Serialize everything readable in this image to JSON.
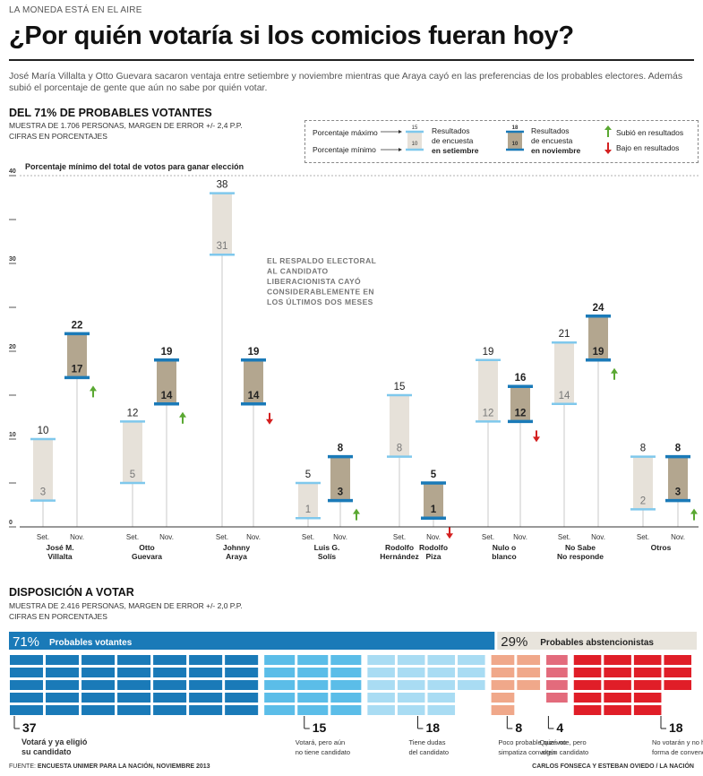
{
  "header": {
    "kicker": "LA MONEDA ESTÁ EN EL AIRE",
    "title": "¿Por quién votaría si los comicios fueran hoy?",
    "intro": "José María Villalta y Otto Guevara sacaron ventaja entre setiembre y noviembre mientras que Araya cayó en las preferencias de los probables electores. Además subió el porcentaje de gente que aún no sabe por quién votar."
  },
  "section1": {
    "title": "DEL 71% DE PROBABLES VOTANTES",
    "sub1": "MUESTRA DE 1.706 PERSONAS, MARGEN DE ERROR +/- 2,4 P.P.",
    "sub2": "CIFRAS EN PORCENTAJES",
    "threshold_label": "Porcentaje mínimo del total de votos para ganar elección",
    "annotation": [
      "EL RESPALDO ELECTORAL",
      "AL CANDIDATO",
      "LIBERACIONISTA CAYÓ",
      "CONSIDERABLEMENTE EN",
      "LOS ÚLTIMOS DOS MESES"
    ]
  },
  "legend": {
    "max_label": "Porcentaje máximo",
    "min_label": "Porcentaje mínimo",
    "sep_results_1": "Resultados",
    "sep_results_2": "de encuesta",
    "sep_results_3": "en setiembre",
    "nov_results_1": "Resultados",
    "nov_results_2": "de encuesta",
    "nov_results_3": "en noviembre",
    "up_label": "Subió en resultados",
    "down_label": "Bajo en resultados",
    "sample_sep_top": "15",
    "sample_sep_bottom": "10",
    "sample_nov_top": "18",
    "sample_nov_bottom": "10",
    "up_icon": "arrow-up-icon",
    "down_icon": "arrow-down-icon"
  },
  "chart_data": {
    "type": "bar",
    "subtype": "range",
    "ylim": [
      0,
      40
    ],
    "yticks": [
      0,
      10,
      20,
      30,
      40
    ],
    "threshold": 40,
    "colors": {
      "sep_fill": "#e6e1d9",
      "sep_line": "#7fc8ec",
      "nov_fill": "#b3a68f",
      "nov_line": "#1a7ab8",
      "up": "#5aa832",
      "down": "#d42020"
    },
    "x_sublabels": [
      "Set.",
      "Nov."
    ],
    "groups": [
      {
        "name": [
          "José M.",
          "Villalta"
        ],
        "sep": {
          "min": 3,
          "max": 10
        },
        "nov": {
          "min": 17,
          "max": 22
        },
        "trend": "up"
      },
      {
        "name": [
          "Otto",
          "Guevara"
        ],
        "sep": {
          "min": 5,
          "max": 12
        },
        "nov": {
          "min": 14,
          "max": 19
        },
        "trend": "up"
      },
      {
        "name": [
          "Johnny",
          "Araya"
        ],
        "sep": {
          "min": 31,
          "max": 38
        },
        "nov": {
          "min": 14,
          "max": 19
        },
        "trend": "down"
      },
      {
        "name": [
          "Luis G.",
          "Solís"
        ],
        "sep": {
          "min": 1,
          "max": 5
        },
        "nov": {
          "min": 3,
          "max": 8
        },
        "trend": "up"
      },
      {
        "name": [
          "Rodolfo",
          "Hernández"
        ],
        "sep": {
          "min": 8,
          "max": 15
        },
        "nov": null,
        "trend": null
      },
      {
        "name": [
          "Rodolfo",
          "Piza"
        ],
        "sep": null,
        "nov": {
          "min": 1,
          "max": 5
        },
        "trend": "down"
      },
      {
        "name": [
          "Nulo o",
          "blanco"
        ],
        "sep": {
          "min": 12,
          "max": 19
        },
        "nov": {
          "min": 12,
          "max": 16
        },
        "trend": "down"
      },
      {
        "name": [
          "No Sabe",
          "No responde"
        ],
        "sep": {
          "min": 14,
          "max": 21
        },
        "nov": {
          "min": 19,
          "max": 24
        },
        "trend": "up"
      },
      {
        "name": [
          "Otros"
        ],
        "sep": {
          "min": 2,
          "max": 8
        },
        "nov": {
          "min": 3,
          "max": 8
        },
        "trend": "up"
      }
    ]
  },
  "section2": {
    "title": "DISPOSICIÓN A VOTAR",
    "sub1": "MUESTRA DE 2.416 PERSONAS, MARGEN DE ERROR +/- 2,0 P.P.",
    "sub2": "CIFRAS EN PORCENTAJES",
    "voters_pct": "71%",
    "voters_label": "Probables votantes",
    "abst_pct": "29%",
    "abst_label": "Probables abstencionistas",
    "voters_color": "#1a7ab8",
    "abst_color": "#e8e4dc",
    "segments": [
      {
        "value": "37",
        "label": [
          "Votará y ya eligió",
          "su candidato"
        ],
        "count": 37,
        "color": "#1a7ab8"
      },
      {
        "value": "15",
        "label": [
          "Votará, pero aún",
          "no tiene candidato"
        ],
        "count": 15,
        "color": "#5bbde8"
      },
      {
        "value": "18",
        "label": [
          "Tiene dudas",
          "del candidato"
        ],
        "count": 18,
        "color": "#a9dcf3"
      },
      {
        "value": "8",
        "label": [
          "Poco probable que vote, pero",
          "simpatiza con algún candidato"
        ],
        "count": 8,
        "color": "#f0a88a"
      },
      {
        "value": "4",
        "label": [
          "Quizá no",
          "voten"
        ],
        "count": 4,
        "color": "#e36b7c"
      },
      {
        "value": "18",
        "label": [
          "No votarán y no hay",
          "forma de convencerlos"
        ],
        "count": 18,
        "color": "#e01e28"
      }
    ]
  },
  "footer": {
    "source_prefix": "FUENTE:",
    "source": "ENCUESTA UNIMER PARA LA NACIÓN, NOVIEMBRE 2013",
    "credit": "CARLOS FONSECA Y ESTEBAN OVIEDO / LA NACIÓN"
  }
}
